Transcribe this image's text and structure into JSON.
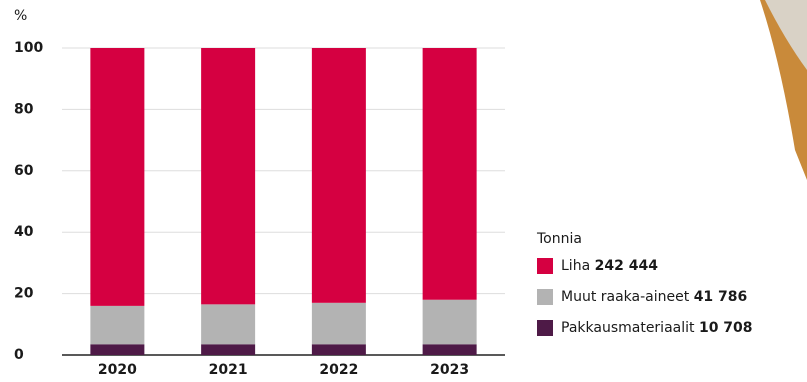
{
  "chart_data": {
    "type": "stacked-bar",
    "y_unit": "%",
    "categories": [
      "2020",
      "2021",
      "2022",
      "2023"
    ],
    "series": [
      {
        "name": "Pakkausmateriaalit",
        "color": "#4e1a47",
        "values": [
          3.5,
          3.5,
          3.5,
          3.5
        ],
        "total_tonnes": {
          "value": 10708,
          "label": "10 708"
        }
      },
      {
        "name": "Muut raaka-aineet",
        "color": "#b3b3b3",
        "values": [
          12.5,
          13,
          13.5,
          14.5
        ],
        "total_tonnes": {
          "value": 41786,
          "label": "41 786"
        }
      },
      {
        "name": "Liha",
        "color": "#d50041",
        "values": [
          84,
          83.5,
          83,
          82
        ],
        "total_tonnes": {
          "value": 242444,
          "label": "242 444"
        }
      }
    ],
    "legend_title": "Tonnia",
    "ylim": [
      0,
      100
    ],
    "yticks": [
      0,
      20,
      40,
      60,
      80,
      100
    ],
    "grid": true
  }
}
